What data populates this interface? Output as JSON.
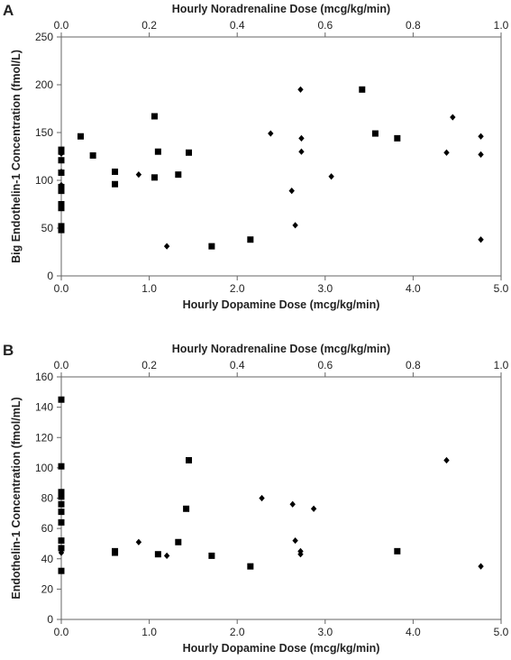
{
  "chart_data": [
    {
      "type": "scatter",
      "panel_label": "A",
      "xlabel": "Hourly Dopamine Dose (mcg/kg/min)",
      "x2label": "Hourly Noradrenaline Dose (mcg/kg/min)",
      "ylabel": "Big Endothelin-1 Concentration (fmol/L)",
      "xlim": [
        0,
        5
      ],
      "x2lim": [
        0,
        1
      ],
      "ylim": [
        0,
        250
      ],
      "xticks": [
        "0.0",
        "1.0",
        "2.0",
        "3.0",
        "4.0",
        "5.0"
      ],
      "x2ticks": [
        "0.0",
        "0.2",
        "0.4",
        "0.6",
        "0.8",
        "1.0"
      ],
      "yticks": [
        "0",
        "50",
        "100",
        "150",
        "200",
        "250"
      ],
      "grid": false,
      "legend": "none",
      "series": [
        {
          "marker": "square",
          "axis": "bottom",
          "points": [
            [
              0,
              132
            ],
            [
              0,
              130
            ],
            [
              0,
              121
            ],
            [
              0,
              108
            ],
            [
              0,
              93
            ],
            [
              0,
              89
            ],
            [
              0,
              75
            ],
            [
              0,
              71
            ],
            [
              0,
              52
            ],
            [
              0,
              48
            ],
            [
              0.22,
              146
            ],
            [
              0.36,
              126
            ],
            [
              0.61,
              109
            ],
            [
              0.61,
              96
            ],
            [
              1.06,
              167
            ],
            [
              1.06,
              103
            ],
            [
              1.1,
              130
            ],
            [
              1.33,
              106
            ],
            [
              1.45,
              129
            ],
            [
              1.71,
              31
            ],
            [
              2.15,
              38
            ],
            [
              3.42,
              195
            ],
            [
              3.57,
              149
            ],
            [
              3.82,
              144
            ]
          ]
        },
        {
          "marker": "diamond",
          "axis": "bottom",
          "points": [
            [
              0,
              128
            ],
            [
              0,
              109
            ],
            [
              0,
              95
            ],
            [
              0.88,
              106
            ],
            [
              1.2,
              31
            ],
            [
              2.38,
              149
            ],
            [
              2.62,
              89
            ],
            [
              2.66,
              53
            ],
            [
              2.72,
              195
            ],
            [
              2.73,
              144
            ],
            [
              2.73,
              130
            ],
            [
              3.07,
              104
            ],
            [
              4.38,
              129
            ],
            [
              4.45,
              166
            ],
            [
              4.77,
              146
            ],
            [
              4.77,
              127
            ],
            [
              4.77,
              38
            ]
          ]
        }
      ]
    },
    {
      "type": "scatter",
      "panel_label": "B",
      "xlabel": "Hourly Dopamine Dose (mcg/kg/min)",
      "x2label": "Hourly Noradrenaline Dose (mcg/kg/min)",
      "ylabel": "Endothelin-1 Concentration (fmol/mL)",
      "xlim": [
        0,
        5
      ],
      "x2lim": [
        0,
        1
      ],
      "ylim": [
        0,
        160
      ],
      "xticks": [
        "0.0",
        "1.0",
        "2.0",
        "3.0",
        "4.0",
        "5.0"
      ],
      "x2ticks": [
        "0.0",
        "0.2",
        "0.4",
        "0.6",
        "0.8",
        "1.0"
      ],
      "yticks": [
        "0",
        "20",
        "40",
        "60",
        "80",
        "100",
        "120",
        "140",
        "160"
      ],
      "grid": false,
      "legend": "none",
      "series": [
        {
          "marker": "square",
          "axis": "bottom",
          "points": [
            [
              0,
              145
            ],
            [
              0,
              101
            ],
            [
              0,
              84
            ],
            [
              0,
              81
            ],
            [
              0,
              76
            ],
            [
              0,
              71
            ],
            [
              0,
              64
            ],
            [
              0,
              52
            ],
            [
              0,
              47
            ],
            [
              0,
              32
            ],
            [
              0.61,
              45
            ],
            [
              0.61,
              44
            ],
            [
              1.1,
              43
            ],
            [
              1.33,
              51
            ],
            [
              1.42,
              73
            ],
            [
              1.45,
              105
            ],
            [
              1.71,
              42
            ],
            [
              2.15,
              35
            ],
            [
              3.82,
              45
            ]
          ]
        },
        {
          "marker": "diamond",
          "axis": "bottom",
          "points": [
            [
              0,
              44
            ],
            [
              0.88,
              51
            ],
            [
              1.2,
              42
            ],
            [
              2.28,
              80
            ],
            [
              2.63,
              76
            ],
            [
              2.66,
              52
            ],
            [
              2.72,
              45
            ],
            [
              2.72,
              43
            ],
            [
              2.87,
              73
            ],
            [
              4.38,
              105
            ],
            [
              4.77,
              35
            ]
          ]
        }
      ]
    }
  ]
}
